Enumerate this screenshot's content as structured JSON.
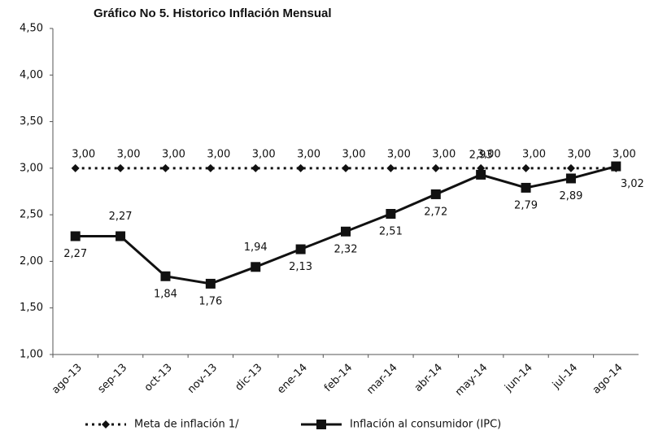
{
  "chart_data": {
    "type": "line",
    "title": "Gráfico No 5. Historico Inflación Mensual",
    "categories": [
      "ago-13",
      "sep-13",
      "oct-13",
      "nov-13",
      "dic-13",
      "ene-14",
      "feb-14",
      "mar-14",
      "abr-14",
      "may-14",
      "jun-14",
      "jul-14",
      "ago-14"
    ],
    "series": [
      {
        "name": "Meta de inflación 1/",
        "color": "#111111",
        "style": "dotted",
        "marker": "diamond",
        "values": [
          3,
          3,
          3,
          3,
          3,
          3,
          3,
          3,
          3,
          3,
          3,
          3,
          3
        ],
        "value_labels": [
          "3,00",
          "3,00",
          "3,00",
          "3,00",
          "3,00",
          "3,00",
          "3,00",
          "3,00",
          "3,00",
          "3,00",
          "3,00",
          "3,00",
          "3,00"
        ]
      },
      {
        "name": "Inflación al consumidor (IPC)",
        "color": "#111111",
        "style": "solid",
        "marker": "square",
        "values": [
          2.27,
          2.27,
          1.84,
          1.76,
          1.94,
          2.13,
          2.32,
          2.51,
          2.72,
          2.93,
          2.79,
          2.89,
          3.02
        ],
        "value_labels": [
          "2,27",
          "2,27",
          "1,84",
          "1,76",
          "1,94",
          "2,13",
          "2,32",
          "2,51",
          "2,72",
          "2,93",
          "2,79",
          "2,89",
          "3,02"
        ]
      }
    ],
    "ylim": [
      1,
      4.5
    ],
    "yticks": [
      {
        "value": 1,
        "label": "1,00"
      },
      {
        "value": 1.5,
        "label": "1,50"
      },
      {
        "value": 2,
        "label": "2,00"
      },
      {
        "value": 2.5,
        "label": "2,50"
      },
      {
        "value": 3,
        "label": "3,00"
      },
      {
        "value": 3.5,
        "label": "3,50"
      },
      {
        "value": 4,
        "label": "4,00"
      },
      {
        "value": 4.5,
        "label": "4,50"
      }
    ],
    "grid": false,
    "legend": "bottom"
  }
}
